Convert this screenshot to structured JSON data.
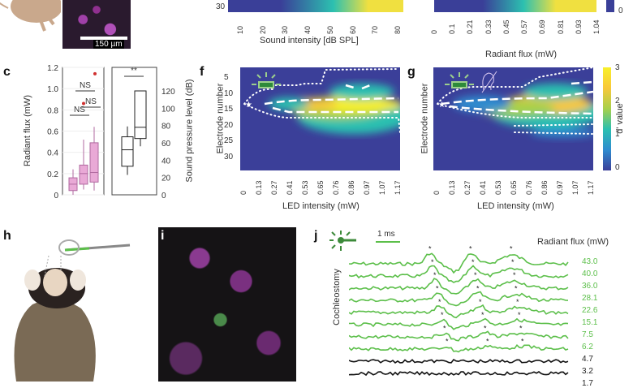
{
  "top": {
    "scale_bar": "150 µm",
    "heat1": {
      "ytick": "30",
      "xticks": [
        "10",
        "20",
        "30",
        "40",
        "50",
        "60",
        "70",
        "80"
      ],
      "xlabel": "Sound intensity [dB SPL]"
    },
    "heat2": {
      "xticks": [
        "0",
        "0.1",
        "0.21",
        "0.33",
        "0.45",
        "0.57",
        "0.69",
        "0.81",
        "0.93",
        "1.04"
      ],
      "xlabel": "Radiant flux (mW)",
      "cbar_tick": "0"
    }
  },
  "panel_c": {
    "label": "c",
    "ylabel_left": "Radiant flux (mW)",
    "yticks_left": [
      "1.2",
      "1.0",
      "0.8",
      "0.6",
      "0.4",
      "0.2",
      "0"
    ],
    "ylabel_right": "Sound pressure level (dB)",
    "yticks_right": [
      "120",
      "100",
      "80",
      "60",
      "40",
      "20",
      "0"
    ],
    "annotations": [
      "NS",
      "NS",
      "NS",
      "**"
    ],
    "box_color": "#e9a9d6",
    "outlier_color": "#d0302f"
  },
  "panel_f": {
    "label": "f",
    "ylabel": "Electrode number",
    "yticks": [
      "5",
      "10",
      "15",
      "20",
      "25",
      "30"
    ],
    "xticks": [
      "0",
      "0.13",
      "0.27",
      "0.41",
      "0.53",
      "0.65",
      "0.76",
      "0.86",
      "0.97",
      "1.07",
      "1.17"
    ],
    "xlabel": "LED intensity (mW)"
  },
  "panel_g": {
    "label": "g",
    "ylabel": "Electrode number",
    "xticks": [
      "0",
      "0.13",
      "0.27",
      "0.41",
      "0.53",
      "0.65",
      "0.76",
      "0.86",
      "0.97",
      "1.07",
      "1.17"
    ],
    "xlabel": "LED intensity (mW)",
    "colorbar": {
      "label": "d' value",
      "ticks": [
        "3",
        "2",
        "1",
        "0"
      ],
      "colors": [
        "#3b3f99",
        "#2f8ccf",
        "#2cc0b0",
        "#a8d04a",
        "#f8c83a",
        "#f8f02a"
      ]
    }
  },
  "panel_h": {
    "label": "h"
  },
  "panel_i": {
    "label": "i"
  },
  "panel_j": {
    "label": "j",
    "scale": "1 ms",
    "legend_title": "Radiant flux (mW)",
    "ylabel": "Cochleostomy",
    "traces": [
      {
        "v": "43.0",
        "c": "green"
      },
      {
        "v": "40.0",
        "c": "green"
      },
      {
        "v": "36.0",
        "c": "green"
      },
      {
        "v": "28.1",
        "c": "green"
      },
      {
        "v": "22.6",
        "c": "green"
      },
      {
        "v": "15.1",
        "c": "green"
      },
      {
        "v": "7.5",
        "c": "green"
      },
      {
        "v": "6.2",
        "c": "green"
      },
      {
        "v": "4.7",
        "c": "black"
      },
      {
        "v": "3.2",
        "c": "black"
      },
      {
        "v": "1.7",
        "c": "black"
      }
    ],
    "green": "#5cbf4a"
  }
}
